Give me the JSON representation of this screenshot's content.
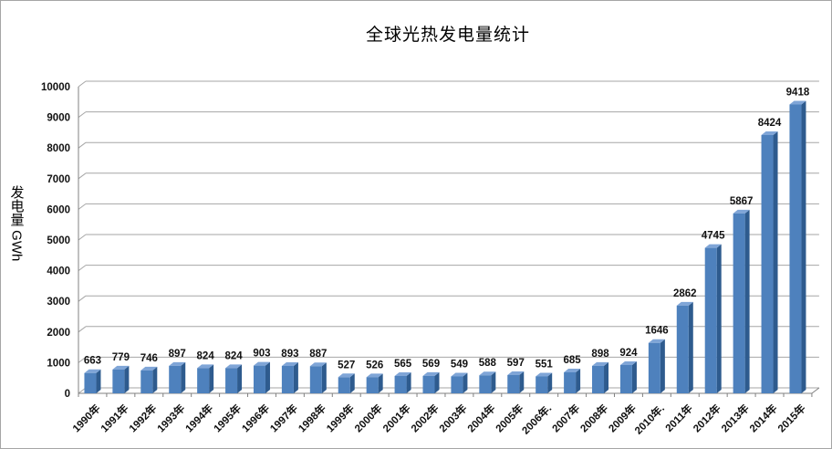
{
  "title": "全球光热发电量统计",
  "chart_data": {
    "type": "bar",
    "style": "3d-column",
    "title": "全球光热发电量统计",
    "xlabel": "",
    "ylabel": "发电量 GWh",
    "categories": [
      "1990年",
      "1991年",
      "1992年",
      "1993年",
      "1994年",
      "1995年",
      "1996年",
      "1997年",
      "1998年",
      "1999年",
      "2000年",
      "2001年",
      "2002年",
      "2003年",
      "2004年",
      "2005年",
      "2006年.",
      "2007年",
      "2008年",
      "2009年",
      "2010年.",
      "2011年",
      "2012年",
      "2013年",
      "2014年",
      "2015年"
    ],
    "values": [
      663,
      779,
      746,
      897,
      824,
      824,
      903,
      893,
      887,
      527,
      526,
      565,
      569,
      549,
      588,
      597,
      551,
      685,
      898,
      924,
      1646,
      2862,
      4745,
      5867,
      8424,
      9418
    ],
    "data_labels_visible": true,
    "ylim": [
      0,
      10000
    ],
    "ytick_step": 1000,
    "yticks": [
      0,
      1000,
      2000,
      3000,
      4000,
      5000,
      6000,
      7000,
      8000,
      9000,
      10000
    ],
    "grid": true,
    "legend": "none",
    "colors": {
      "bar_front": "#4E81BD",
      "bar_front_light": "#6191c9",
      "bar_side": "#2E5B8E",
      "bar_top": "#7FA5D7",
      "gridline": "#A6A6A6",
      "axis": "#808080",
      "text": "#111111",
      "frame_border": "#A6A6A6",
      "background": "#FFFFFF"
    }
  }
}
